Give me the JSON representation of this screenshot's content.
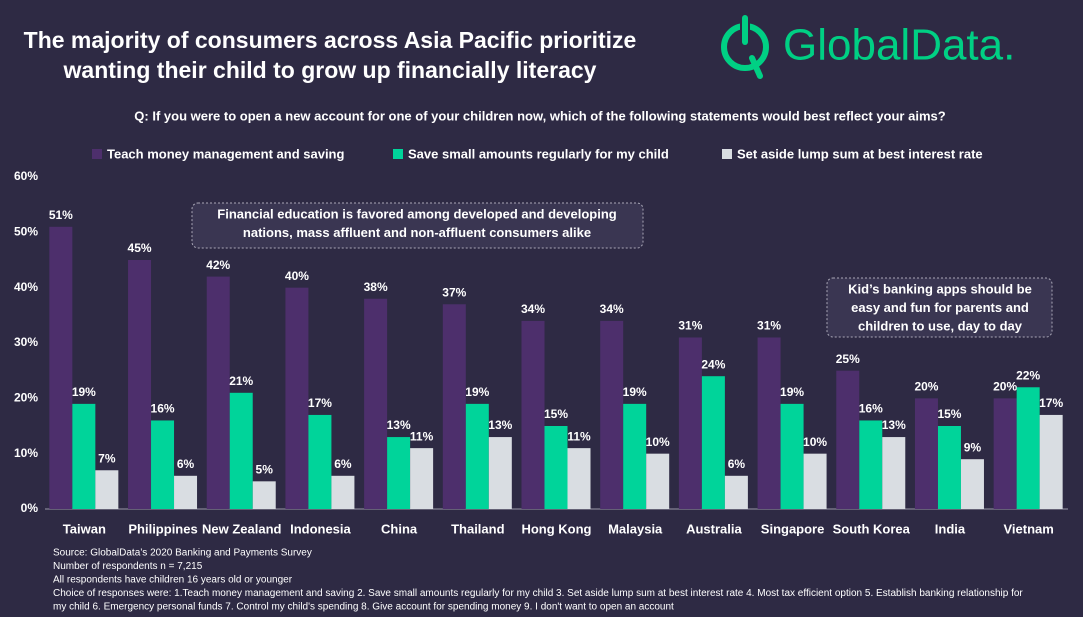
{
  "logo": "GlobalData.",
  "chart_data": {
    "type": "bar",
    "title": [
      "The majority of consumers across Asia Pacific prioritize",
      "wanting their child to grow up financially literacy"
    ],
    "subtitle": "Q: If you were to open a new account for one of your children now, which of the following statements would best reflect your aims?",
    "categories": [
      "Taiwan",
      "Philippines",
      "New Zealand",
      "Indonesia",
      "China",
      "Thailand",
      "Hong Kong",
      "Malaysia",
      "Australia",
      "Singapore",
      "South Korea",
      "India",
      "Vietnam"
    ],
    "series": [
      {
        "name": "Teach money management and saving",
        "color": "#4d2f6c",
        "values": [
          51,
          45,
          42,
          40,
          38,
          37,
          34,
          34,
          31,
          31,
          25,
          20,
          20
        ],
        "value_labels": [
          "51%",
          "45%",
          "42%",
          "40%",
          "38%",
          "37%",
          "34%",
          "34%",
          "31%",
          "31%",
          "25%",
          "20%",
          "20%"
        ]
      },
      {
        "name": "Save small amounts regularly for my child",
        "color": "#00d49a",
        "values": [
          19,
          16,
          21,
          17,
          13,
          19,
          15,
          19,
          24,
          19,
          16,
          15,
          22
        ],
        "value_labels": [
          "19%",
          "16%",
          "21%",
          "17%",
          "13%",
          "19%",
          "15%",
          "19%",
          "24%",
          "19%",
          "16%",
          "15%",
          "22%"
        ]
      },
      {
        "name": "Set aside lump sum at best interest rate",
        "color": "#d9dde2",
        "values": [
          7,
          6,
          5,
          6,
          11,
          13,
          11,
          10,
          6,
          10,
          13,
          9,
          17
        ],
        "value_labels": [
          "7%",
          "6%",
          "5%",
          "6%",
          "11%",
          "13%",
          "11%",
          "10%",
          "6%",
          "10%",
          "13%",
          "9%",
          "17%"
        ]
      }
    ],
    "ylim": [
      0,
      60
    ],
    "yticks": [
      {
        "value": 0,
        "label": "0%"
      },
      {
        "value": 10,
        "label": "10%"
      },
      {
        "value": 20,
        "label": "20%"
      },
      {
        "value": 30,
        "label": "30%"
      },
      {
        "value": 40,
        "label": "40%"
      },
      {
        "value": 50,
        "label": "50%"
      },
      {
        "value": 60,
        "label": "60%"
      }
    ],
    "grid": false,
    "annotations": [
      {
        "lines": [
          "Financial education is favored among developed and developing",
          "nations, mass affluent and non-affluent consumers alike"
        ]
      },
      {
        "lines": [
          "Kid’s banking apps should be",
          "easy and fun for parents and",
          "children to use, day to day"
        ]
      }
    ],
    "notes": [
      "Source: GlobalData’s 2020 Banking and Payments Survey",
      "Number of respondents n = 7,215",
      "All respondents have children 16 years old or younger",
      "Choice of responses were: 1.Teach money management and saving 2. Save small amounts regularly for my child 3. Set aside lump sum at best interest rate 4. Most tax efficient option 5. Establish banking relationship for",
      "my child 6. Emergency personal funds 7. Control my child's spending 8. Give account for spending money 9. I don't want to open an account"
    ]
  }
}
